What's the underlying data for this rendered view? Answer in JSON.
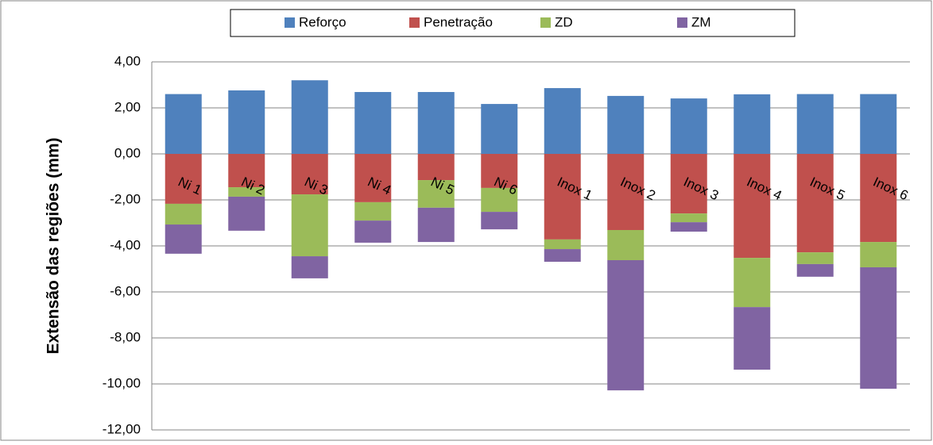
{
  "chart_data": {
    "type": "stacked_bar",
    "y_label": "Extensão das regiões (mm)",
    "categories": [
      "Ni 1",
      "Ni 2",
      "Ni 3",
      "Ni 4",
      "Ni 5",
      "Ni 6",
      "Inox 1",
      "Inox 2",
      "Inox 3",
      "Inox 4",
      "Inox 5",
      "Inox 6"
    ],
    "series": [
      {
        "name": "Reforço",
        "color": "#4f81bd",
        "values": [
          2.6,
          2.76,
          3.2,
          2.69,
          2.69,
          2.17,
          2.86,
          2.52,
          2.41,
          2.59,
          2.6,
          2.6
        ]
      },
      {
        "name": "Penetração",
        "color": "#c0504d",
        "values": [
          -2.17,
          -1.45,
          -1.76,
          -2.1,
          -1.14,
          -1.48,
          -3.72,
          -3.31,
          -2.59,
          -4.52,
          -4.28,
          -3.83
        ]
      },
      {
        "name": "ZD",
        "color": "#9bbb59",
        "values": [
          -0.9,
          -0.41,
          -2.69,
          -0.8,
          -1.2,
          -1.04,
          -0.42,
          -1.31,
          -0.38,
          -2.14,
          -0.51,
          -1.1
        ]
      },
      {
        "name": "ZM",
        "color": "#8064a2",
        "values": [
          -1.27,
          -1.48,
          -0.96,
          -0.96,
          -1.49,
          -0.76,
          -0.55,
          -5.66,
          -0.41,
          -2.72,
          -0.55,
          -5.28
        ]
      }
    ],
    "ylim": [
      -12,
      4
    ],
    "yticks": [
      {
        "value": 4,
        "label": "4,00"
      },
      {
        "value": 2,
        "label": "2,00"
      },
      {
        "value": 0,
        "label": "0,00"
      },
      {
        "value": -2,
        "label": "-2,00"
      },
      {
        "value": -4,
        "label": "-4,00"
      },
      {
        "value": -6,
        "label": "-6,00"
      },
      {
        "value": -8,
        "label": "-8,00"
      },
      {
        "value": -10,
        "label": "-10,00"
      },
      {
        "value": -12,
        "label": "-12,00"
      }
    ],
    "grid": true,
    "legend": "top"
  }
}
